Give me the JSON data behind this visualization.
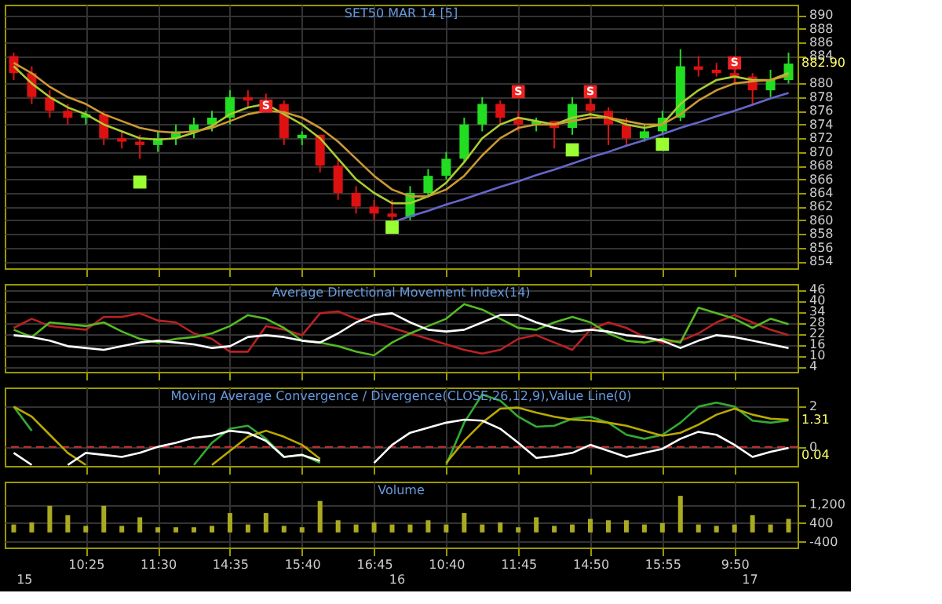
{
  "chart_data": [
    {
      "type": "candlestick",
      "title": "SET50 MAR 14  [5]",
      "tick_labels": "y",
      "grid": true,
      "ohlc": [
        [
          884,
          884.5,
          880.5,
          881.5
        ],
        [
          881.5,
          882.5,
          877,
          878
        ],
        [
          878,
          879,
          875,
          876
        ],
        [
          876,
          877,
          874,
          875
        ],
        [
          875,
          876,
          874,
          875.5
        ],
        [
          875.5,
          876,
          871,
          872
        ],
        [
          872,
          873,
          870.5,
          871.5
        ],
        [
          871.5,
          872.5,
          869,
          871
        ],
        [
          871,
          873,
          870,
          872
        ],
        [
          872,
          874,
          871,
          873
        ],
        [
          873,
          875,
          872,
          874
        ],
        [
          874,
          876,
          873,
          875
        ],
        [
          875,
          879,
          874,
          878
        ],
        [
          878,
          879,
          876.5,
          877.5
        ],
        [
          877.5,
          878.5,
          876,
          877
        ],
        [
          877,
          877.5,
          871,
          872
        ],
        [
          872,
          873,
          871,
          872.5
        ],
        [
          872.5,
          872.5,
          867,
          868
        ],
        [
          868,
          869,
          863,
          864
        ],
        [
          864,
          865,
          861,
          862
        ],
        [
          862,
          863,
          860,
          861
        ],
        [
          861,
          863,
          859.5,
          860.5
        ],
        [
          860.5,
          865,
          860,
          864
        ],
        [
          864,
          867.5,
          863.5,
          866.5
        ],
        [
          866.5,
          870,
          866,
          869
        ],
        [
          869,
          875,
          868.5,
          874
        ],
        [
          874,
          878,
          873,
          877
        ],
        [
          877,
          877.5,
          874,
          875
        ],
        [
          875,
          876,
          873,
          874
        ],
        [
          874,
          875,
          873,
          874.5
        ],
        [
          874.5,
          874.5,
          870.5,
          873.5
        ],
        [
          873.5,
          878,
          872.5,
          877
        ],
        [
          877,
          878,
          875,
          876
        ],
        [
          876,
          876.5,
          871,
          874
        ],
        [
          874,
          875,
          871,
          872
        ],
        [
          872,
          874,
          871.5,
          873
        ],
        [
          873,
          876,
          872.5,
          875
        ],
        [
          875,
          885,
          874.5,
          882.5
        ],
        [
          882.5,
          884,
          881,
          882
        ],
        [
          882,
          883,
          881,
          881.5
        ],
        [
          881.5,
          884,
          880,
          881
        ],
        [
          881,
          881.5,
          877,
          879
        ],
        [
          879,
          882,
          878,
          880.5
        ],
        [
          880.5,
          884.5,
          880,
          882.9
        ]
      ],
      "colors": [
        "#dd1111",
        "#dd1111",
        "#dd1111",
        "#dd1111",
        "#22dd22",
        "#dd1111",
        "#dd1111",
        "#dd1111",
        "#22dd22",
        "#22dd22",
        "#22dd22",
        "#22dd22",
        "#22dd22",
        "#dd1111",
        "#dd1111",
        "#dd1111",
        "#22dd22",
        "#dd1111",
        "#dd1111",
        "#dd1111",
        "#dd1111",
        "#dd1111",
        "#22dd22",
        "#22dd22",
        "#22dd22",
        "#22dd22",
        "#22dd22",
        "#dd1111",
        "#dd1111",
        "#22dd22",
        "#dd1111",
        "#22dd22",
        "#dd1111",
        "#dd1111",
        "#dd1111",
        "#22dd22",
        "#22dd22",
        "#22dd22",
        "#dd1111",
        "#dd1111",
        "#dd1111",
        "#dd1111",
        "#22dd22",
        "#22dd22"
      ],
      "series": [
        {
          "type": "line",
          "color": "#aacc33",
          "values": [
            882.5,
            880,
            878,
            876.5,
            875.5,
            874,
            873,
            872,
            871.8,
            872,
            872.8,
            873.8,
            875.5,
            876.5,
            877,
            875.5,
            874,
            872,
            869,
            866,
            864,
            862.5,
            862.5,
            863.5,
            865.5,
            868.5,
            872,
            874,
            875,
            874.5,
            874,
            875,
            875.5,
            875,
            874,
            873.5,
            874,
            877,
            879,
            880.5,
            881,
            880.5,
            880.5,
            881.5
          ]
        },
        {
          "type": "line",
          "color": "#cc9933",
          "values": [
            883,
            881.5,
            879.5,
            878,
            877,
            875.5,
            874.5,
            873.5,
            873,
            872.8,
            873,
            873.5,
            874.5,
            875.5,
            876,
            875.8,
            875,
            873.5,
            871.5,
            869,
            866.5,
            864.5,
            863.5,
            863.5,
            864.5,
            866.5,
            869.5,
            872,
            873.5,
            874,
            874,
            874.5,
            875,
            875,
            874.5,
            874,
            874,
            875.5,
            877.5,
            879,
            880,
            880.3,
            880.5,
            881.2
          ]
        },
        {
          "type": "line",
          "color": "#6666cc",
          "values": [
            null,
            null,
            null,
            null,
            null,
            null,
            null,
            null,
            null,
            null,
            null,
            null,
            null,
            null,
            null,
            null,
            null,
            null,
            null,
            null,
            null,
            859.7,
            860.6,
            861.4,
            862.3,
            863.1,
            864.0,
            864.9,
            865.7,
            866.6,
            867.4,
            868.3,
            869.2,
            870.0,
            870.9,
            871.7,
            872.6,
            873.5,
            874.3,
            875.2,
            876.0,
            876.9,
            877.8,
            878.6
          ]
        },
        {
          "type": "scatter",
          "marker": "square",
          "color": "#99ff33",
          "values": [
            null,
            null,
            null,
            null,
            null,
            null,
            null,
            865.6,
            null,
            null,
            null,
            null,
            null,
            null,
            null,
            null,
            null,
            null,
            null,
            null,
            null,
            859,
            null,
            null,
            null,
            null,
            null,
            null,
            null,
            null,
            null,
            870.3,
            null,
            null,
            null,
            null,
            871.1,
            null,
            null,
            null,
            null,
            null,
            null,
            null
          ]
        },
        {
          "type": "scatter",
          "marker": "square",
          "color": "#ee2222",
          "values": [
            null,
            null,
            null,
            null,
            null,
            null,
            null,
            null,
            null,
            null,
            null,
            null,
            null,
            null,
            876.7,
            null,
            null,
            null,
            null,
            null,
            null,
            null,
            null,
            null,
            null,
            null,
            null,
            null,
            878.8,
            null,
            null,
            null,
            878.8,
            null,
            null,
            null,
            null,
            null,
            null,
            null,
            883,
            null,
            null,
            null
          ],
          "value_labels": [
            null,
            null,
            null,
            null,
            null,
            null,
            null,
            null,
            null,
            null,
            null,
            null,
            null,
            null,
            "S",
            null,
            null,
            null,
            null,
            null,
            null,
            null,
            null,
            null,
            null,
            null,
            null,
            null,
            "S",
            null,
            null,
            null,
            "S",
            null,
            null,
            null,
            null,
            null,
            null,
            null,
            "S",
            null,
            null,
            null
          ]
        }
      ],
      "ylim": [
        853,
        891.5
      ],
      "yticks": [
        854,
        856,
        858,
        860,
        862,
        864,
        866,
        868,
        870,
        872,
        874,
        876,
        878,
        880,
        884,
        886,
        888,
        890
      ],
      "annotations": [
        "882.90"
      ]
    },
    {
      "type": "line",
      "title": "Average Directional Movement Index(14)",
      "tick_labels": "y",
      "grid": true,
      "series": [
        {
          "color": "#bb2222",
          "values": [
            25,
            30,
            26,
            25,
            24,
            31,
            31,
            33,
            29,
            28,
            22,
            19,
            12,
            12,
            26,
            24,
            21,
            33,
            34,
            30,
            28,
            25,
            22,
            19,
            16,
            13,
            11,
            13,
            19,
            21,
            17,
            13,
            24,
            28,
            25,
            20,
            17,
            18,
            22,
            28,
            32,
            28,
            24,
            21
          ]
        },
        {
          "color": "#55bb22",
          "values": [
            24,
            20,
            28,
            27,
            26,
            28,
            23,
            19,
            17,
            19,
            20,
            22,
            26,
            32,
            30,
            25,
            18,
            17,
            15,
            12,
            10,
            17,
            22,
            26,
            30,
            38,
            35,
            30,
            25,
            24,
            28,
            31,
            28,
            22,
            18,
            17,
            19,
            17,
            36,
            33,
            30,
            25,
            30,
            27
          ]
        },
        {
          "color": "#ffffff",
          "values": [
            21,
            20,
            18,
            15,
            14,
            13,
            15,
            17,
            18,
            17,
            16,
            14,
            15,
            20,
            21,
            20,
            18,
            17,
            22,
            28,
            32,
            33,
            28,
            24,
            23,
            24,
            28,
            32,
            32,
            28,
            25,
            23,
            24,
            23,
            21,
            20,
            18,
            14,
            18,
            21,
            20,
            18,
            16,
            14
          ]
        }
      ],
      "ylim": [
        1,
        49
      ],
      "yticks": [
        4,
        10,
        16,
        22,
        28,
        34,
        40,
        46
      ]
    },
    {
      "type": "line",
      "title": "Moving Average Convergence / Divergence(CLOSE,26,12,9),Value Line(0)",
      "tick_labels": "y",
      "grid": true,
      "series": [
        {
          "color": "#33aa33",
          "values": [
            2.0,
            0.8,
            null,
            null,
            null,
            null,
            null,
            null,
            null,
            null,
            -0.9,
            0.2,
            0.9,
            1.05,
            0.4,
            -0.5,
            -0.4,
            -0.8,
            null,
            null,
            null,
            null,
            null,
            null,
            -0.9,
            1.2,
            2.6,
            2.3,
            1.5,
            1.0,
            1.05,
            1.4,
            1.5,
            1.2,
            0.6,
            0.4,
            0.6,
            1.2,
            2.0,
            2.2,
            2.0,
            1.3,
            1.2,
            1.31
          ]
        },
        {
          "color": "#bbaa00",
          "values": [
            2.0,
            1.5,
            0.6,
            -0.3,
            -0.9,
            null,
            null,
            null,
            null,
            null,
            null,
            -0.9,
            -0.2,
            0.5,
            0.8,
            0.5,
            0.1,
            -0.6,
            null,
            null,
            null,
            null,
            null,
            null,
            -0.8,
            0.3,
            1.2,
            1.9,
            1.95,
            1.7,
            1.5,
            1.35,
            1.3,
            1.2,
            1.05,
            0.8,
            0.55,
            0.7,
            1.1,
            1.6,
            1.9,
            1.6,
            1.4,
            1.35
          ]
        },
        {
          "color": "#ffffff",
          "values": [
            -0.3,
            -0.9,
            null,
            -0.9,
            -0.3,
            -0.4,
            -0.5,
            -0.3,
            0,
            0.2,
            0.45,
            0.55,
            0.8,
            0.7,
            0.3,
            -0.5,
            -0.4,
            -0.7,
            null,
            null,
            -0.8,
            0.1,
            0.7,
            0.95,
            1.2,
            1.35,
            1.3,
            0.9,
            0.2,
            -0.55,
            -0.45,
            -0.3,
            0.1,
            -0.2,
            -0.5,
            -0.3,
            -0.1,
            0.4,
            0.75,
            0.6,
            0.1,
            -0.5,
            -0.25,
            -0.05
          ]
        }
      ],
      "ref_lines": [
        {
          "axis": "y",
          "value": 0,
          "color": "#cc3333",
          "line_style": "dashed"
        }
      ],
      "ylim": [
        -0.95,
        2.95
      ],
      "yticks": [
        2,
        0
      ],
      "annotations": [
        "1.31",
        "0.04"
      ]
    },
    {
      "type": "bar",
      "title": "Volume",
      "grid": true,
      "color": "#aaaa22",
      "categories": [
        null,
        null,
        null,
        null,
        "10:25",
        null,
        null,
        null,
        "11:30",
        null,
        null,
        null,
        "14:35",
        null,
        null,
        null,
        "15:40",
        null,
        null,
        null,
        "16:45",
        null,
        null,
        null,
        "10:40",
        null,
        null,
        null,
        "11:45",
        null,
        null,
        null,
        "14:50",
        null,
        null,
        null,
        "15:55",
        null,
        null,
        null,
        "9:50",
        null,
        null,
        null
      ],
      "values": [
        340,
        430,
        1140,
        740,
        280,
        1140,
        280,
        650,
        220,
        220,
        220,
        280,
        830,
        340,
        830,
        280,
        220,
        1350,
        520,
        340,
        430,
        340,
        340,
        520,
        340,
        830,
        340,
        430,
        220,
        650,
        280,
        340,
        580,
        520,
        520,
        340,
        400,
        1570,
        340,
        280,
        340,
        740,
        340,
        580
      ],
      "ylim": [
        -650,
        2180
      ],
      "yticks": [
        {
          "value": 1200,
          "label": "1,200"
        },
        400,
        -400
      ],
      "annotations": [
        "15",
        "16",
        "17"
      ]
    }
  ]
}
